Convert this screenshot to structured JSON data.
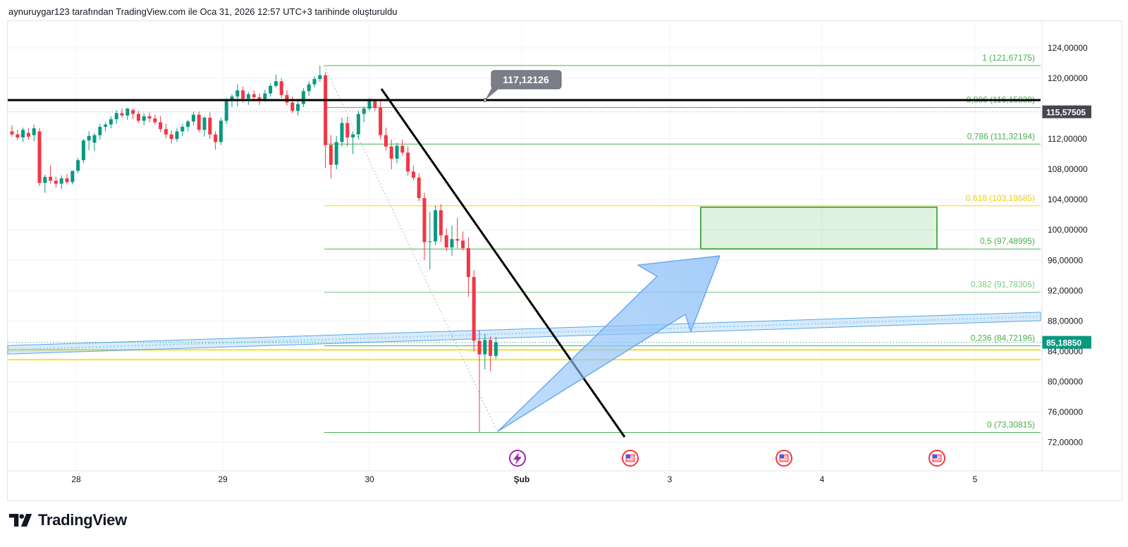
{
  "header": {
    "caption": "aynuruygar123 tarafından TradingView.com ile Oca 31, 2026 12:57 UTC+3 tarihinde oluşturuldu"
  },
  "brand": {
    "name": "TradingView"
  },
  "chart_data": {
    "type": "candlestick",
    "y_axis": {
      "ticks": [
        "124,00000",
        "120,00000",
        "116,00000",
        "112,00000",
        "108,00000",
        "104,00000",
        "100,00000",
        "96,00000",
        "92,00000",
        "88,00000",
        "84,00000",
        "80,00000",
        "76,00000",
        "72,00000"
      ],
      "ylim": [
        70,
        126
      ]
    },
    "x_axis": {
      "ticks": [
        "28",
        "29",
        "30",
        "Şub",
        "3",
        "4",
        "5"
      ]
    },
    "price_tags": [
      {
        "value": 115.57505,
        "text": "115,57505",
        "color": "#434651"
      },
      {
        "value": 85.1885,
        "text": "85,18850",
        "color": "#089981"
      }
    ],
    "horizontal_line": {
      "value": 117.12126,
      "text": "117,12126"
    },
    "fibonacci": [
      {
        "level": "1",
        "price": 121.67175,
        "text": "1 (121,67175)",
        "color": "#4caf50"
      },
      {
        "level": "0.886",
        "price": 116.15838,
        "text": "0,886 (116,15838)",
        "color": "#4caf50"
      },
      {
        "level": "0.786",
        "price": 111.32194,
        "text": "0,786 (111,32194)",
        "color": "#4caf50"
      },
      {
        "level": "0.618",
        "price": 103.19685,
        "text": "0,618 (103,19685)",
        "color": "#f5d200"
      },
      {
        "level": "0.5",
        "price": 97.48995,
        "text": "0,5 (97,48995)",
        "color": "#4caf50"
      },
      {
        "level": "0.382",
        "price": 91.78305,
        "text": "0,382 (91,78305)",
        "color": "#81c784"
      },
      {
        "level": "0.236",
        "price": 84.72196,
        "text": "0,236 (84,72196)",
        "color": "#4caf50"
      },
      {
        "level": "0",
        "price": 73.30815,
        "text": "0 (73,30815)",
        "color": "#4caf50"
      }
    ],
    "yellow_zone": [
      82.9,
      84.2
    ],
    "target_box": {
      "top": 103.0,
      "bottom": 97.5
    },
    "candles": [
      {
        "o": 113.0,
        "h": 113.8,
        "l": 112.3,
        "c": 112.6
      },
      {
        "o": 112.6,
        "h": 113.2,
        "l": 111.8,
        "c": 112.2
      },
      {
        "o": 112.2,
        "h": 113.5,
        "l": 111.6,
        "c": 113.2
      },
      {
        "o": 112.8,
        "h": 113.4,
        "l": 111.9,
        "c": 112.3
      },
      {
        "o": 112.5,
        "h": 113.9,
        "l": 111.7,
        "c": 113.4
      },
      {
        "o": 113.0,
        "h": 113.4,
        "l": 105.8,
        "c": 106.2
      },
      {
        "o": 106.2,
        "h": 107.3,
        "l": 104.9,
        "c": 107.0
      },
      {
        "o": 107.0,
        "h": 108.5,
        "l": 106.1,
        "c": 106.5
      },
      {
        "o": 106.5,
        "h": 107.0,
        "l": 105.6,
        "c": 106.1
      },
      {
        "o": 106.1,
        "h": 107.2,
        "l": 105.4,
        "c": 106.8
      },
      {
        "o": 106.8,
        "h": 107.4,
        "l": 106.0,
        "c": 106.3
      },
      {
        "o": 106.3,
        "h": 107.5,
        "l": 106.0,
        "c": 107.8
      },
      {
        "o": 107.8,
        "h": 109.5,
        "l": 107.5,
        "c": 109.2
      },
      {
        "o": 109.2,
        "h": 112.0,
        "l": 108.8,
        "c": 111.8
      },
      {
        "o": 111.8,
        "h": 113.0,
        "l": 110.5,
        "c": 112.4
      },
      {
        "o": 111.5,
        "h": 112.8,
        "l": 110.4,
        "c": 112.5
      },
      {
        "o": 112.5,
        "h": 114.0,
        "l": 111.9,
        "c": 113.6
      },
      {
        "o": 113.6,
        "h": 114.2,
        "l": 113.0,
        "c": 113.9
      },
      {
        "o": 113.9,
        "h": 115.0,
        "l": 113.4,
        "c": 114.6
      },
      {
        "o": 114.6,
        "h": 115.8,
        "l": 114.0,
        "c": 115.4
      },
      {
        "o": 115.4,
        "h": 116.0,
        "l": 114.8,
        "c": 115.1
      },
      {
        "o": 115.1,
        "h": 116.1,
        "l": 114.5,
        "c": 116.0
      },
      {
        "o": 115.8,
        "h": 116.0,
        "l": 114.6,
        "c": 115.3
      },
      {
        "o": 115.3,
        "h": 115.7,
        "l": 114.1,
        "c": 114.4
      },
      {
        "o": 114.4,
        "h": 115.4,
        "l": 113.8,
        "c": 115.0
      },
      {
        "o": 115.0,
        "h": 115.5,
        "l": 114.2,
        "c": 114.7
      },
      {
        "o": 114.7,
        "h": 115.2,
        "l": 113.9,
        "c": 114.2
      },
      {
        "o": 114.2,
        "h": 115.0,
        "l": 112.9,
        "c": 113.3
      },
      {
        "o": 113.3,
        "h": 114.0,
        "l": 112.1,
        "c": 112.6
      },
      {
        "o": 112.6,
        "h": 113.1,
        "l": 111.4,
        "c": 112.0
      },
      {
        "o": 112.0,
        "h": 113.4,
        "l": 111.6,
        "c": 113.0
      },
      {
        "o": 113.0,
        "h": 114.0,
        "l": 112.4,
        "c": 113.6
      },
      {
        "o": 113.6,
        "h": 114.5,
        "l": 113.0,
        "c": 114.3
      },
      {
        "o": 114.3,
        "h": 115.6,
        "l": 113.8,
        "c": 115.2
      },
      {
        "o": 115.2,
        "h": 115.6,
        "l": 112.9,
        "c": 113.2
      },
      {
        "o": 113.2,
        "h": 115.0,
        "l": 112.3,
        "c": 114.8
      },
      {
        "o": 114.8,
        "h": 115.5,
        "l": 112.0,
        "c": 112.6
      },
      {
        "o": 112.6,
        "h": 113.0,
        "l": 110.6,
        "c": 111.6
      },
      {
        "o": 111.6,
        "h": 114.8,
        "l": 111.2,
        "c": 114.4
      },
      {
        "o": 114.4,
        "h": 117.4,
        "l": 114.0,
        "c": 117.0
      },
      {
        "o": 117.0,
        "h": 117.9,
        "l": 116.2,
        "c": 117.6
      },
      {
        "o": 117.6,
        "h": 119.2,
        "l": 116.3,
        "c": 118.4
      },
      {
        "o": 118.4,
        "h": 118.9,
        "l": 116.8,
        "c": 117.3
      },
      {
        "o": 117.3,
        "h": 118.2,
        "l": 116.5,
        "c": 117.9
      },
      {
        "o": 117.9,
        "h": 118.4,
        "l": 117.0,
        "c": 117.5
      },
      {
        "o": 117.5,
        "h": 118.0,
        "l": 116.5,
        "c": 117.2
      },
      {
        "o": 117.2,
        "h": 118.5,
        "l": 116.9,
        "c": 118.0
      },
      {
        "o": 118.0,
        "h": 119.3,
        "l": 117.6,
        "c": 119.0
      },
      {
        "o": 119.0,
        "h": 120.5,
        "l": 118.8,
        "c": 119.6
      },
      {
        "o": 119.6,
        "h": 120.0,
        "l": 117.4,
        "c": 117.8
      },
      {
        "o": 117.8,
        "h": 118.4,
        "l": 116.4,
        "c": 116.8
      },
      {
        "o": 116.8,
        "h": 117.6,
        "l": 115.4,
        "c": 115.7
      },
      {
        "o": 115.7,
        "h": 117.2,
        "l": 115.1,
        "c": 116.6
      },
      {
        "o": 116.6,
        "h": 118.7,
        "l": 116.2,
        "c": 118.3
      },
      {
        "o": 118.3,
        "h": 119.6,
        "l": 117.7,
        "c": 119.2
      },
      {
        "o": 119.2,
        "h": 120.3,
        "l": 118.8,
        "c": 119.9
      },
      {
        "o": 119.9,
        "h": 121.67,
        "l": 119.5,
        "c": 120.4
      },
      {
        "o": 120.4,
        "h": 120.8,
        "l": 108.2,
        "c": 111.2
      },
      {
        "o": 111.2,
        "h": 112.5,
        "l": 106.8,
        "c": 108.6
      },
      {
        "o": 108.6,
        "h": 112.4,
        "l": 108.0,
        "c": 111.6
      },
      {
        "o": 111.6,
        "h": 114.8,
        "l": 111.0,
        "c": 114.1
      },
      {
        "o": 114.1,
        "h": 114.9,
        "l": 111.0,
        "c": 112.2
      },
      {
        "o": 112.2,
        "h": 113.0,
        "l": 110.0,
        "c": 112.6
      },
      {
        "o": 112.6,
        "h": 115.7,
        "l": 112.0,
        "c": 115.3
      },
      {
        "o": 115.3,
        "h": 116.3,
        "l": 114.2,
        "c": 116.0
      },
      {
        "o": 116.0,
        "h": 117.4,
        "l": 115.7,
        "c": 117.1
      },
      {
        "o": 117.1,
        "h": 117.3,
        "l": 115.7,
        "c": 116.1
      },
      {
        "o": 116.1,
        "h": 117.0,
        "l": 112.0,
        "c": 112.5
      },
      {
        "o": 112.5,
        "h": 113.5,
        "l": 110.5,
        "c": 111.0
      },
      {
        "o": 111.0,
        "h": 111.9,
        "l": 108.0,
        "c": 109.4
      },
      {
        "o": 109.4,
        "h": 111.5,
        "l": 108.8,
        "c": 111.1
      },
      {
        "o": 111.1,
        "h": 111.9,
        "l": 109.8,
        "c": 110.2
      },
      {
        "o": 110.2,
        "h": 111.0,
        "l": 107.2,
        "c": 107.7
      },
      {
        "o": 107.7,
        "h": 108.5,
        "l": 106.5,
        "c": 106.9
      },
      {
        "o": 106.9,
        "h": 107.5,
        "l": 103.8,
        "c": 104.2
      },
      {
        "o": 104.2,
        "h": 104.9,
        "l": 96.0,
        "c": 98.4
      },
      {
        "o": 98.4,
        "h": 102.4,
        "l": 94.8,
        "c": 98.5
      },
      {
        "o": 98.5,
        "h": 103.2,
        "l": 98.0,
        "c": 102.6
      },
      {
        "o": 102.6,
        "h": 103.4,
        "l": 98.4,
        "c": 99.3
      },
      {
        "o": 99.3,
        "h": 100.2,
        "l": 97.2,
        "c": 97.7
      },
      {
        "o": 97.7,
        "h": 100.6,
        "l": 96.6,
        "c": 98.8
      },
      {
        "o": 98.8,
        "h": 101.6,
        "l": 97.6,
        "c": 98.6
      },
      {
        "o": 98.6,
        "h": 99.8,
        "l": 97.3,
        "c": 97.6
      },
      {
        "o": 97.6,
        "h": 99.0,
        "l": 91.2,
        "c": 93.8
      },
      {
        "o": 93.8,
        "h": 94.7,
        "l": 84.0,
        "c": 85.4
      },
      {
        "o": 85.4,
        "h": 86.8,
        "l": 73.3,
        "c": 83.6
      },
      {
        "o": 83.6,
        "h": 86.3,
        "l": 81.6,
        "c": 85.5
      },
      {
        "o": 85.5,
        "h": 86.0,
        "l": 81.4,
        "c": 83.4
      },
      {
        "o": 83.4,
        "h": 85.9,
        "l": 83.0,
        "c": 85.2
      }
    ]
  }
}
